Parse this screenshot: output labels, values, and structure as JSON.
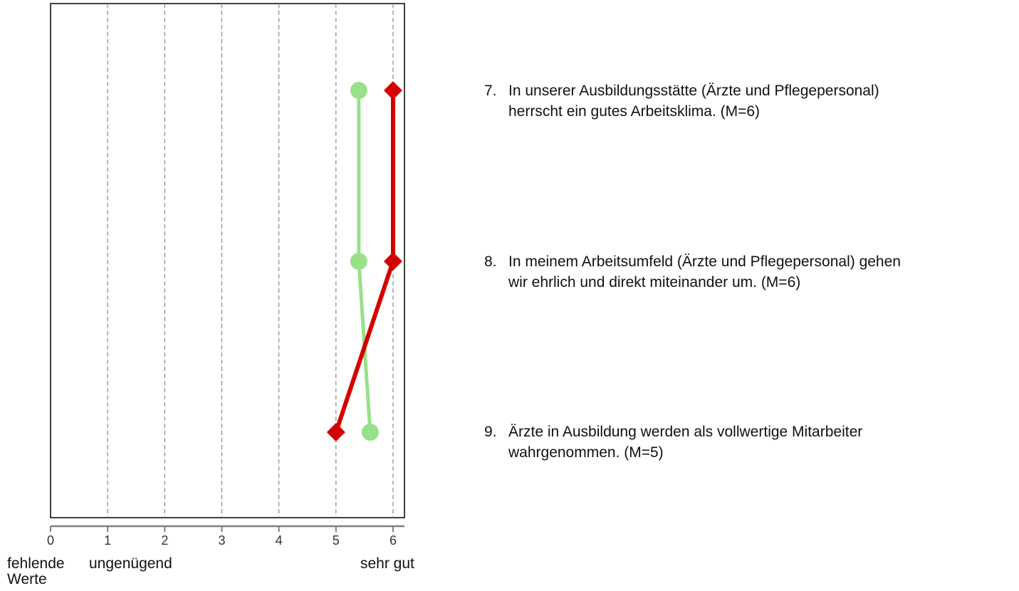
{
  "chart_data": {
    "type": "line",
    "orientation": "horizontal",
    "xlim": [
      0,
      6.2
    ],
    "x_ticks": [
      "0",
      "1",
      "2",
      "3",
      "4",
      "5",
      "6"
    ],
    "grid": "vertical dashed",
    "scale_labels": [
      {
        "x": 0,
        "text": "fehlende\nWerte"
      },
      {
        "x": 1,
        "text": "ungenügend"
      },
      {
        "x": 6,
        "text": "sehr gut"
      }
    ],
    "items": [
      {
        "number": "7.",
        "text": "In unserer Ausbildungsstätte (Ärzte und Pflegepersonal)\nherrscht ein gutes Arbeitsklima. (M=6)"
      },
      {
        "number": "8.",
        "text": "In meinem Arbeitsumfeld (Ärzte und Pflegepersonal) gehen\nwir ehrlich und direkt miteinander um. (M=6)"
      },
      {
        "number": "9.",
        "text": "Ärzte in Ausbildung werden als vollwertige Mitarbeiter\nwahrgenommen. (M=5)"
      }
    ],
    "series": [
      {
        "marker": "circle",
        "color": "#99e08a",
        "values": [
          5.4,
          5.4,
          5.6
        ]
      },
      {
        "marker": "diamond",
        "color": "#d40000",
        "values": [
          6,
          6,
          5
        ]
      }
    ]
  }
}
